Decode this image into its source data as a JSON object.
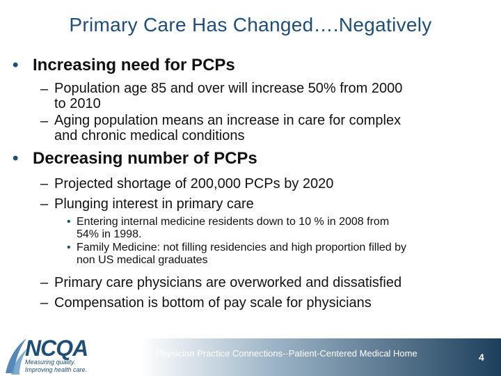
{
  "slide": {
    "title": "Primary Care Has Changed….Negatively",
    "sections": [
      {
        "heading": "Increasing need for PCPs",
        "items": [
          {
            "text_line1": "Population age 85 and over will increase 50% from 2000",
            "text_line2": "to 2010"
          },
          {
            "text_line1": "Aging population means an increase in care for complex",
            "text_line2": "and chronic medical conditions"
          }
        ]
      },
      {
        "heading": "Decreasing number of PCPs",
        "items": [
          {
            "text_line1": "Projected shortage of 200,000 PCPs by 2020"
          },
          {
            "text_line1": "Plunging interest in primary care"
          }
        ],
        "subitems": [
          {
            "text_line1": "Entering internal medicine residents down to 10 % in 2008 from",
            "text_line2": "54% in 1998."
          },
          {
            "text_line1": "Family Medicine: not filling residencies and high proportion filled by",
            "text_line2": "non US medical graduates"
          }
        ],
        "items_after": [
          {
            "text_line1": "Primary care physicians are overworked and dissatisfied"
          },
          {
            "text_line1": "Compensation is bottom of pay scale for physicians"
          }
        ]
      }
    ],
    "bullet_symbol": "•",
    "dash_symbol": "–"
  },
  "footer": {
    "text": "Physician Practice Connections--Patient-Centered Medical  Home",
    "page_number": "4"
  },
  "logo": {
    "name": "NCQA",
    "tagline1": "Measuring quality.",
    "tagline2": "Improving health care."
  },
  "colors": {
    "title": "#1f4e79",
    "footer_dark": "#1d3f5c"
  }
}
